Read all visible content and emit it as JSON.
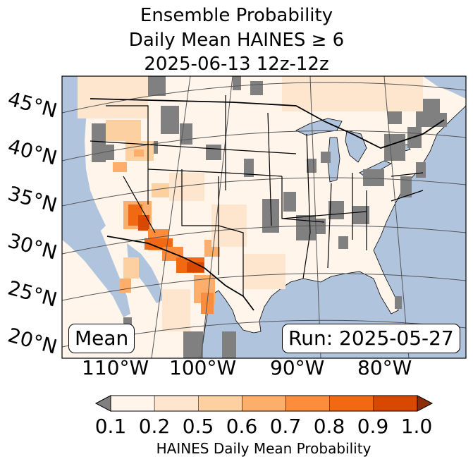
{
  "title": {
    "line1": "Ensemble Probability",
    "line2": "Daily Mean HAINES ≥ 6",
    "line3": "2025-06-13 12z-12z"
  },
  "map": {
    "region": "Contiguous United States",
    "ocean_color": "#b0c4de",
    "land_color": "#fff5eb",
    "missing_color": "#808080",
    "lat_labels": [
      "45°N",
      "40°N",
      "35°N",
      "30°N",
      "25°N",
      "20°N"
    ],
    "lon_labels": [
      "110°W",
      "100°W",
      "90°W",
      "80°W"
    ],
    "stat_box": "Mean",
    "run_box": "Run: 2025-05-27"
  },
  "colorbar": {
    "label": "HAINES Daily Mean Probability",
    "ticks": [
      "0.1",
      "0.2",
      "0.5",
      "0.6",
      "0.7",
      "0.8",
      "0.9",
      "1.0"
    ],
    "under_color": "#808080",
    "colors": [
      "#fff5eb",
      "#fee6ce",
      "#fdd0a2",
      "#fdae6b",
      "#fd8d3c",
      "#f16913",
      "#d94801"
    ],
    "over_color": "#8c2d04"
  }
}
